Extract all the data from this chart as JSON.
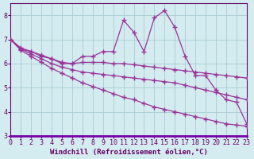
{
  "x": [
    0,
    1,
    2,
    3,
    4,
    5,
    6,
    7,
    8,
    9,
    10,
    11,
    12,
    13,
    14,
    15,
    16,
    17,
    18,
    19,
    20,
    21,
    22,
    23
  ],
  "series": [
    [
      7.0,
      6.6,
      6.5,
      6.3,
      6.2,
      6.0,
      6.0,
      6.3,
      6.3,
      6.5,
      6.5,
      7.8,
      7.3,
      6.5,
      7.9,
      8.2,
      7.5,
      6.3,
      5.5,
      5.5,
      4.9,
      4.5,
      4.4,
      3.5
    ],
    [
      7.0,
      6.65,
      6.5,
      6.35,
      6.2,
      6.05,
      6.0,
      6.05,
      6.05,
      6.05,
      6.0,
      6.0,
      5.95,
      5.9,
      5.85,
      5.8,
      5.75,
      5.7,
      5.65,
      5.6,
      5.55,
      5.5,
      5.45,
      5.4
    ],
    [
      7.0,
      6.6,
      6.4,
      6.2,
      6.0,
      5.85,
      5.75,
      5.65,
      5.6,
      5.55,
      5.5,
      5.45,
      5.4,
      5.35,
      5.3,
      5.25,
      5.2,
      5.1,
      5.0,
      4.9,
      4.8,
      4.7,
      4.6,
      4.5
    ],
    [
      7.0,
      6.55,
      6.3,
      6.05,
      5.8,
      5.6,
      5.4,
      5.2,
      5.05,
      4.9,
      4.75,
      4.6,
      4.5,
      4.35,
      4.2,
      4.1,
      4.0,
      3.9,
      3.8,
      3.7,
      3.6,
      3.5,
      3.45,
      3.4
    ]
  ],
  "color": "#993399",
  "bg_color": "#d4ecef",
  "grid_color": "#aaccd4",
  "xlabel": "Windchill (Refroidissement éolien,°C)",
  "ylim": [
    3.0,
    8.5
  ],
  "xlim": [
    0,
    23
  ],
  "yticks": [
    3,
    4,
    5,
    6,
    7,
    8
  ],
  "xticks": [
    0,
    1,
    2,
    3,
    4,
    5,
    6,
    7,
    8,
    9,
    10,
    11,
    12,
    13,
    14,
    15,
    16,
    17,
    18,
    19,
    20,
    21,
    22,
    23
  ],
  "marker": "+",
  "markersize": 4,
  "linewidth": 0.9,
  "xlabel_fontsize": 6.5,
  "tick_fontsize": 6,
  "label_color": "#660066",
  "spine_color": "#660066",
  "bottom_bar_color": "#7700aa"
}
